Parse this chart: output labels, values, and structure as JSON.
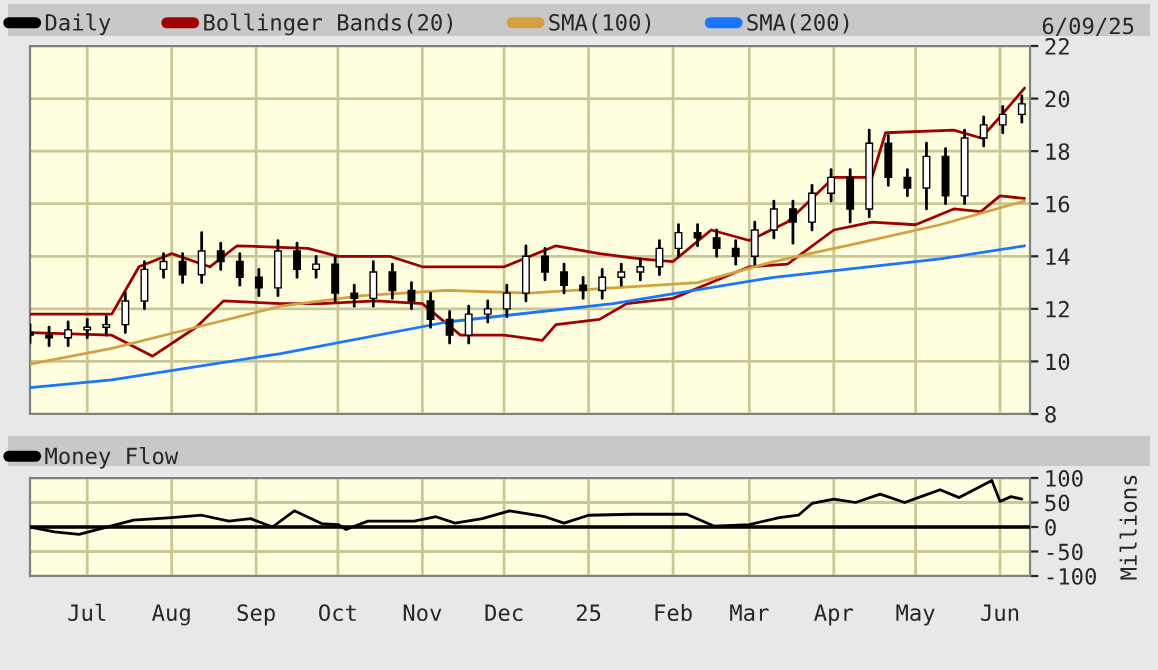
{
  "chart_data": [
    {
      "type": "candlestick",
      "legend": "top left",
      "grid": true,
      "tick_labels": "y",
      "annotations": [
        "6/09/25"
      ],
      "xlim": [
        "2024-06-10",
        "2025-06-12"
      ],
      "ylim": [
        8,
        22
      ],
      "yticks": [
        8,
        10,
        12,
        14,
        16,
        18,
        20,
        22
      ],
      "xticks": [
        {
          "value": "2024-07-01",
          "label": null
        },
        {
          "value": "2024-08-01",
          "label": null
        },
        {
          "value": "2024-09-01",
          "label": null
        },
        {
          "value": "2024-10-01",
          "label": null
        },
        {
          "value": "2024-11-01",
          "label": null
        },
        {
          "value": "2024-12-01",
          "label": null
        },
        {
          "value": "2025-01-01",
          "label": null
        },
        {
          "value": "2025-02-01",
          "label": null
        },
        {
          "value": "2025-03-01",
          "label": null
        },
        {
          "value": "2025-04-01",
          "label": null
        },
        {
          "value": "2025-05-01",
          "label": null
        },
        {
          "value": "2025-06-01",
          "label": null
        }
      ],
      "series": [
        {
          "name": "Daily",
          "color": "#000000",
          "x": [
            "2024-06-10",
            "2024-06-17",
            "2024-06-24",
            "2024-07-01",
            "2024-07-08",
            "2024-07-15",
            "2024-07-22",
            "2024-07-29",
            "2024-08-05",
            "2024-08-12",
            "2024-08-19",
            "2024-08-26",
            "2024-09-02",
            "2024-09-09",
            "2024-09-16",
            "2024-09-23",
            "2024-09-30",
            "2024-10-07",
            "2024-10-14",
            "2024-10-21",
            "2024-10-28",
            "2024-11-04",
            "2024-11-11",
            "2024-11-18",
            "2024-11-25",
            "2024-12-02",
            "2024-12-09",
            "2024-12-16",
            "2024-12-23",
            "2024-12-30",
            "2025-01-06",
            "2025-01-13",
            "2025-01-20",
            "2025-01-27",
            "2025-02-03",
            "2025-02-10",
            "2025-02-17",
            "2025-02-24",
            "2025-03-03",
            "2025-03-10",
            "2025-03-17",
            "2025-03-24",
            "2025-03-31",
            "2025-04-07",
            "2025-04-14",
            "2025-04-21",
            "2025-04-28",
            "2025-05-05",
            "2025-05-12",
            "2025-05-19",
            "2025-05-26",
            "2025-06-02",
            "2025-06-09"
          ],
          "ohlc": [
            [
              11.1,
              11.4,
              10.7,
              11.0
            ],
            [
              11.0,
              11.3,
              10.6,
              10.9
            ],
            [
              10.9,
              11.5,
              10.6,
              11.2
            ],
            [
              11.2,
              11.6,
              10.9,
              11.3
            ],
            [
              11.3,
              11.7,
              11.0,
              11.4
            ],
            [
              11.4,
              12.6,
              11.1,
              12.3
            ],
            [
              12.3,
              13.8,
              12.0,
              13.5
            ],
            [
              13.5,
              14.1,
              13.2,
              13.8
            ],
            [
              13.8,
              14.1,
              13.0,
              13.3
            ],
            [
              13.3,
              14.9,
              13.0,
              14.2
            ],
            [
              14.2,
              14.5,
              13.5,
              13.8
            ],
            [
              13.8,
              14.1,
              12.9,
              13.2
            ],
            [
              13.2,
              13.5,
              12.5,
              12.8
            ],
            [
              12.8,
              14.6,
              12.5,
              14.2
            ],
            [
              14.2,
              14.5,
              13.2,
              13.5
            ],
            [
              13.5,
              14.0,
              13.2,
              13.7
            ],
            [
              13.7,
              14.0,
              12.3,
              12.6
            ],
            [
              12.6,
              12.9,
              12.1,
              12.4
            ],
            [
              12.4,
              13.8,
              12.1,
              13.4
            ],
            [
              13.4,
              13.7,
              12.4,
              12.7
            ],
            [
              12.7,
              13.0,
              12.0,
              12.3
            ],
            [
              12.3,
              12.6,
              11.3,
              11.6
            ],
            [
              11.6,
              11.9,
              10.7,
              11.0
            ],
            [
              11.0,
              12.1,
              10.7,
              11.8
            ],
            [
              11.8,
              12.3,
              11.5,
              12.0
            ],
            [
              12.0,
              12.9,
              11.7,
              12.6
            ],
            [
              12.6,
              14.4,
              12.3,
              14.0
            ],
            [
              14.0,
              14.3,
              13.1,
              13.4
            ],
            [
              13.4,
              13.7,
              12.6,
              12.9
            ],
            [
              12.9,
              13.2,
              12.4,
              12.7
            ],
            [
              12.7,
              13.5,
              12.4,
              13.2
            ],
            [
              13.2,
              13.7,
              12.9,
              13.4
            ],
            [
              13.4,
              13.9,
              13.1,
              13.6
            ],
            [
              13.6,
              14.6,
              13.3,
              14.3
            ],
            [
              14.3,
              15.2,
              14.0,
              14.9
            ],
            [
              14.9,
              15.2,
              14.4,
              14.7
            ],
            [
              14.7,
              15.0,
              14.0,
              14.3
            ],
            [
              14.3,
              14.6,
              13.7,
              14.0
            ],
            [
              14.0,
              15.3,
              13.7,
              15.0
            ],
            [
              15.0,
              16.1,
              14.7,
              15.8
            ],
            [
              15.8,
              16.1,
              14.5,
              15.3
            ],
            [
              15.3,
              16.7,
              15.0,
              16.4
            ],
            [
              16.4,
              17.3,
              16.1,
              17.0
            ],
            [
              17.0,
              17.3,
              15.3,
              15.8
            ],
            [
              15.8,
              18.8,
              15.5,
              18.3
            ],
            [
              18.3,
              18.6,
              16.7,
              17.0
            ],
            [
              17.0,
              17.3,
              16.3,
              16.6
            ],
            [
              16.6,
              18.3,
              15.8,
              17.8
            ],
            [
              17.8,
              18.1,
              16.0,
              16.3
            ],
            [
              16.3,
              18.8,
              16.0,
              18.5
            ],
            [
              18.5,
              19.3,
              18.2,
              19.0
            ],
            [
              19.0,
              19.7,
              18.7,
              19.4
            ],
            [
              19.4,
              20.1,
              19.1,
              19.8
            ]
          ]
        },
        {
          "name": "Bollinger Bands(20)",
          "type": "line",
          "color": "#a00000",
          "x": [
            "2024-06-10",
            "2024-07-10",
            "2024-07-20",
            "2024-08-01",
            "2024-08-15",
            "2024-08-25",
            "2024-09-20",
            "2024-10-01",
            "2024-10-20",
            "2024-11-01",
            "2024-11-15",
            "2024-12-01",
            "2024-12-20",
            "2025-01-05",
            "2025-01-20",
            "2025-02-01",
            "2025-02-15",
            "2025-03-01",
            "2025-03-15",
            "2025-04-01",
            "2025-04-15",
            "2025-04-20",
            "2025-05-15",
            "2025-05-25",
            "2025-06-01",
            "2025-06-10"
          ],
          "values": [
            11.8,
            11.8,
            13.6,
            14.1,
            13.6,
            14.4,
            14.3,
            14.0,
            14.0,
            13.6,
            13.6,
            13.6,
            14.4,
            14.1,
            13.9,
            13.8,
            15.0,
            14.6,
            15.3,
            17.0,
            17.0,
            18.7,
            18.8,
            18.5,
            19.3,
            20.4
          ]
        },
        {
          "type": "line",
          "color": "#a00000",
          "x": [
            "2024-06-10",
            "2024-07-10",
            "2024-07-25",
            "2024-08-10",
            "2024-08-20",
            "2024-09-10",
            "2024-09-25",
            "2024-10-15",
            "2024-11-01",
            "2024-11-15",
            "2024-12-01",
            "2024-12-15",
            "2024-12-20",
            "2025-01-05",
            "2025-01-15",
            "2025-02-01",
            "2025-02-15",
            "2025-03-01",
            "2025-03-15",
            "2025-04-01",
            "2025-04-15",
            "2025-05-01",
            "2025-05-15",
            "2025-05-25",
            "2025-06-01",
            "2025-06-10"
          ],
          "values": [
            11.1,
            11.0,
            10.2,
            11.3,
            12.3,
            12.2,
            12.2,
            12.3,
            12.2,
            11.0,
            11.0,
            10.8,
            11.4,
            11.6,
            12.2,
            12.4,
            13.0,
            13.6,
            13.7,
            15.0,
            15.3,
            15.2,
            15.8,
            15.7,
            16.3,
            16.2
          ]
        },
        {
          "name": "SMA(100)",
          "type": "line",
          "color": "#d4a040",
          "x": [
            "2024-06-10",
            "2024-07-10",
            "2024-08-10",
            "2024-09-10",
            "2024-10-10",
            "2024-11-10",
            "2024-12-10",
            "2025-01-10",
            "2025-02-10",
            "2025-03-10",
            "2025-04-10",
            "2025-05-10",
            "2025-06-10"
          ],
          "values": [
            9.9,
            10.5,
            11.3,
            12.1,
            12.5,
            12.7,
            12.6,
            12.8,
            13.0,
            13.8,
            14.5,
            15.2,
            16.1
          ]
        },
        {
          "name": "SMA(200)",
          "type": "line",
          "color": "#1a75ff",
          "x": [
            "2024-06-10",
            "2024-07-10",
            "2024-09-10",
            "2024-11-10",
            "2025-01-10",
            "2025-03-10",
            "2025-05-10",
            "2025-06-10"
          ],
          "values": [
            9.0,
            9.3,
            10.3,
            11.5,
            12.2,
            13.2,
            13.9,
            14.4
          ]
        }
      ]
    },
    {
      "type": "line",
      "legend": "top left",
      "grid": true,
      "ylabel": "Millions",
      "xlim": [
        "2024-06-10",
        "2025-06-12"
      ],
      "ylim": [
        -100,
        100
      ],
      "yticks": [
        -100,
        -50,
        0,
        50,
        100
      ],
      "xticks": [
        {
          "value": "2024-07-01",
          "label": "Jul"
        },
        {
          "value": "2024-08-01",
          "label": "Aug"
        },
        {
          "value": "2024-09-01",
          "label": "Sep"
        },
        {
          "value": "2024-10-01",
          "label": "Oct"
        },
        {
          "value": "2024-11-01",
          "label": "Nov"
        },
        {
          "value": "2024-12-01",
          "label": "Dec"
        },
        {
          "value": "2025-01-01",
          "label": "25"
        },
        {
          "value": "2025-02-01",
          "label": "Feb"
        },
        {
          "value": "2025-03-01",
          "label": "Mar"
        },
        {
          "value": "2025-04-01",
          "label": "Apr"
        },
        {
          "value": "2025-05-01",
          "label": "May"
        },
        {
          "value": "2025-06-01",
          "label": "Jun"
        }
      ],
      "ref_lines": [
        {
          "axis": "y",
          "value": 0,
          "color": "#000000"
        }
      ],
      "series": [
        {
          "name": "Money Flow",
          "color": "#000000",
          "x": [
            "2024-06-10",
            "2024-06-19",
            "2024-06-28",
            "2024-07-05",
            "2024-07-18",
            "2024-08-01",
            "2024-08-12",
            "2024-08-22",
            "2024-08-30",
            "2024-09-07",
            "2024-09-15",
            "2024-09-25",
            "2024-10-01",
            "2024-10-04",
            "2024-10-12",
            "2024-10-29",
            "2024-11-06",
            "2024-11-13",
            "2024-11-23",
            "2024-12-03",
            "2024-12-16",
            "2024-12-23",
            "2025-01-01",
            "2025-01-17",
            "2025-02-06",
            "2025-02-16",
            "2025-03-01",
            "2025-03-12",
            "2025-03-19",
            "2025-03-24",
            "2025-04-01",
            "2025-04-09",
            "2025-04-18",
            "2025-04-27",
            "2025-05-03",
            "2025-05-10",
            "2025-05-17",
            "2025-05-29",
            "2025-06-01",
            "2025-06-05",
            "2025-06-09"
          ],
          "values": [
            0,
            -10,
            -15,
            -5,
            14,
            19,
            24,
            12,
            17,
            0,
            33,
            7,
            5,
            -5,
            12,
            12,
            21,
            8,
            17,
            33,
            21,
            8,
            24,
            26,
            26,
            2,
            5,
            19,
            24,
            48,
            57,
            50,
            67,
            50,
            62,
            76,
            60,
            95,
            52,
            62,
            57
          ]
        }
      ]
    }
  ]
}
